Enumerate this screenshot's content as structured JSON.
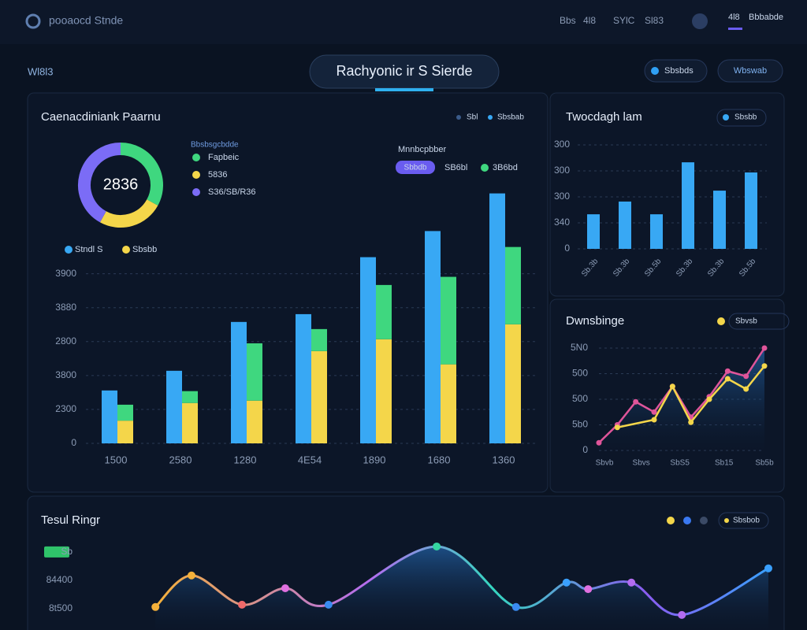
{
  "header": {
    "brand": "pooaocd Stnde",
    "nav": [
      "Bbs",
      "4l8",
      "SYlC",
      "Sl83"
    ],
    "user": "4l8",
    "user_name": "Bbbabde"
  },
  "toolbar": {
    "left": "Wl8l3",
    "title": "Rachyonic ir S Sierde",
    "button1": "Sbsbds",
    "button2": "Wbswab"
  },
  "chart_data": [
    {
      "type": "bar",
      "title": "Caenacdiniank Paarnu",
      "top_legend": [
        "Sbl",
        "Sbsbab"
      ],
      "annotations": [
        "Mnnbcpbber",
        "Sbbdb",
        "SB6bl",
        "3B6bd"
      ],
      "categories": [
        "1500",
        "2580",
        "1280",
        "4E54",
        "1890",
        "1680",
        "1360"
      ],
      "series": [
        {
          "name": "Stndl S",
          "color": "#38a8f4",
          "values": [
            1560,
            2140,
            3580,
            3810,
            5490,
            6260,
            7370
          ]
        },
        {
          "name": "Sbsbb",
          "color": "#f4d64a",
          "values": [
            670,
            1190,
            1260,
            2720,
            3070,
            2330,
            3510
          ]
        },
        {
          "color": "#3fd77f",
          "values": [
            470,
            350,
            1690,
            650,
            1600,
            2580,
            2280
          ]
        }
      ],
      "ylim": [
        0,
        7500
      ],
      "yticks": [
        0,
        {
          "value": 1000,
          "label": "2300"
        },
        {
          "value": 2000,
          "label": "3800"
        },
        {
          "value": 3000,
          "label": "2800"
        },
        {
          "value": 4000,
          "label": "3880"
        },
        {
          "value": 5000,
          "label": "3900"
        }
      ],
      "grid": true
    },
    {
      "type": "pie",
      "title": "Bbsbsgcbdde",
      "center_label": "2836",
      "categories": [
        "Fapbeic",
        "5836",
        "S36/SB/R36"
      ],
      "values": [
        33,
        25,
        42
      ],
      "colors": [
        "#3fd77f",
        "#f4d64a",
        "#7b6cf6"
      ]
    },
    {
      "type": "bar",
      "title": "Twocdagh lam",
      "legend": "Sbsbb",
      "categories": [
        "Sb.3b",
        "Sb.3b",
        "Sb.5b",
        "Sb.3b",
        "Sb.3b",
        "Sb.5b"
      ],
      "values": [
        1.33,
        1.82,
        1.33,
        3.33,
        2.24,
        2.94
      ],
      "color": "#38a8f4",
      "ylim": [
        0,
        4
      ],
      "yticks": [
        0,
        {
          "value": 1,
          "label": "340"
        },
        {
          "value": 2,
          "label": "300"
        },
        {
          "value": 3,
          "label": "300"
        },
        {
          "value": 4,
          "label": "300"
        }
      ],
      "grid": true
    },
    {
      "type": "line",
      "title": "Dwnsbinge",
      "legend": "Sbvsb",
      "xlim": [
        0,
        9
      ],
      "xticks": [
        {
          "value": 0.3,
          "label": "Sbvb"
        },
        {
          "value": 2.3,
          "label": "Sbvs"
        },
        {
          "value": 4.4,
          "label": "SbS5"
        },
        {
          "value": 6.8,
          "label": "Sb15"
        },
        {
          "value": 9,
          "label": "Sb5b"
        }
      ],
      "ylim": [
        0,
        4
      ],
      "yticks": [
        0,
        {
          "value": 1,
          "label": "5b0"
        },
        {
          "value": 2,
          "label": "500"
        },
        {
          "value": 3,
          "label": "500"
        },
        {
          "value": 4,
          "label": "5N0"
        }
      ],
      "grid": true,
      "series": [
        {
          "color": "#e0559a",
          "x": [
            0,
            1,
            2,
            3,
            4,
            5,
            6,
            7,
            8,
            9
          ],
          "values": [
            0.3,
            1.0,
            1.9,
            1.5,
            2.5,
            1.3,
            2.1,
            3.1,
            2.9,
            4.0
          ]
        },
        {
          "color": "#f4d64a",
          "x": [
            1,
            3,
            4,
            5,
            6,
            7,
            8,
            9
          ],
          "values": [
            0.9,
            1.2,
            2.5,
            1.1,
            2.0,
            2.8,
            2.4,
            3.3
          ]
        }
      ]
    },
    {
      "type": "line",
      "smooth": true,
      "title": "Tesul Ringr",
      "legend": "Sbsbob",
      "xlim": [
        0,
        100
      ],
      "ylim": [
        -0.75,
        2.3
      ],
      "yticks": [
        {
          "value": 0,
          "label": "8t500"
        },
        {
          "value": 1,
          "label": "84400"
        },
        {
          "value": 2,
          "label": "Sb"
        }
      ],
      "series": [
        {
          "color": "#4aa3ff",
          "x": [
            15,
            20,
            27,
            33,
            39,
            54,
            65,
            72,
            75,
            81,
            88,
            100
          ],
          "values": [
            0.06,
            1.17,
            0.14,
            0.72,
            0.14,
            2.19,
            0.06,
            0.92,
            0.69,
            0.92,
            -0.22,
            1.42
          ]
        }
      ]
    }
  ]
}
